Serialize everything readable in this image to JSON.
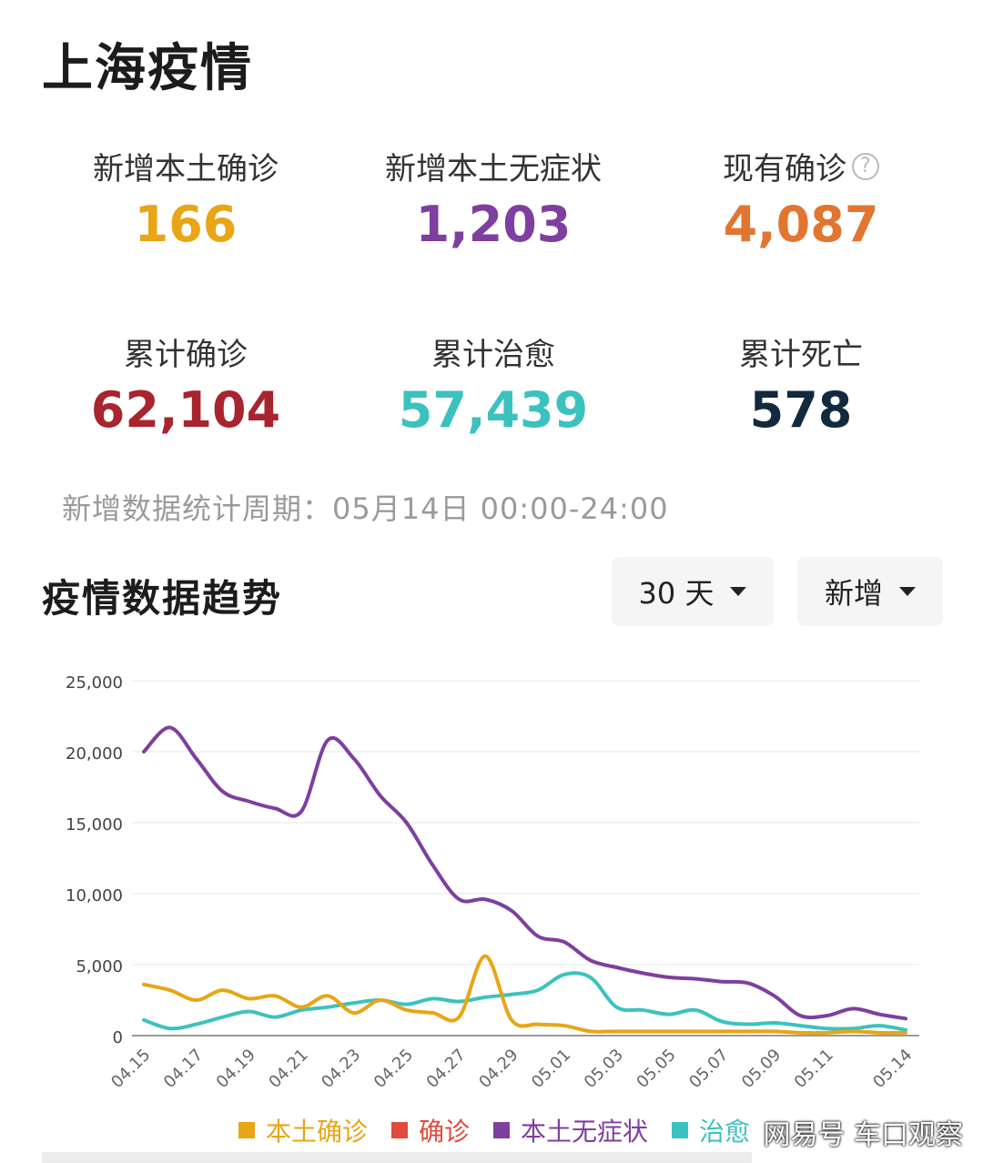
{
  "page_title": "上海疫情",
  "stats": [
    {
      "label": "新增本土确诊",
      "value": "166",
      "color": "#e8a515"
    },
    {
      "label": "新增本土无症状",
      "value": "1,203",
      "color": "#7e3fa0"
    },
    {
      "label": "现有确诊",
      "value": "4,087",
      "color": "#e2752f",
      "help": "?"
    },
    {
      "label": "累计确诊",
      "value": "62,104",
      "color": "#a8242e"
    },
    {
      "label": "累计治愈",
      "value": "57,439",
      "color": "#3cc2be"
    },
    {
      "label": "累计死亡",
      "value": "578",
      "color": "#13293d"
    }
  ],
  "period_text": "新增数据统计周期：05月14日 00:00-24:00",
  "trend_title": "疫情数据趋势",
  "range_dropdown": "30 天",
  "type_dropdown": "新增",
  "watermark": "网易号 车口观察",
  "chart_data": {
    "type": "line",
    "x": [
      "04.15",
      "04.16",
      "04.17",
      "04.18",
      "04.19",
      "04.20",
      "04.21",
      "04.22",
      "04.23",
      "04.24",
      "04.25",
      "04.26",
      "04.27",
      "04.28",
      "04.29",
      "04.30",
      "05.01",
      "05.02",
      "05.03",
      "05.04",
      "05.05",
      "05.06",
      "05.07",
      "05.08",
      "05.09",
      "05.10",
      "05.11",
      "05.12",
      "05.13",
      "05.14"
    ],
    "x_tick_labels": [
      "04.15",
      "04.17",
      "04.19",
      "04.21",
      "04.23",
      "04.25",
      "04.27",
      "04.29",
      "05.01",
      "05.03",
      "05.05",
      "05.07",
      "05.09",
      "05.11",
      "05.14"
    ],
    "ylim": [
      0,
      25000
    ],
    "y_ticks": [
      "0",
      "5,000",
      "10,000",
      "15,000",
      "20,000",
      "25,000"
    ],
    "y_tick_values": [
      0,
      5000,
      10000,
      15000,
      20000,
      25000
    ],
    "grid": true,
    "legend_position": "bottom",
    "series": [
      {
        "name": "本土确诊",
        "color": "#e8a515",
        "values": [
          3600,
          3200,
          2500,
          3200,
          2600,
          2800,
          2000,
          2800,
          1600,
          2500,
          1800,
          1600,
          1300,
          5600,
          1100,
          800,
          700,
          300,
          300,
          300,
          300,
          300,
          300,
          300,
          300,
          200,
          200,
          300,
          200,
          200
        ]
      },
      {
        "name": "确诊",
        "color": "#e24a3b",
        "values": [
          null,
          null,
          null,
          null,
          null,
          null,
          null,
          null,
          null,
          null,
          null,
          null,
          null,
          null,
          null,
          null,
          null,
          null,
          null,
          null,
          null,
          null,
          null,
          null,
          null,
          null,
          null,
          null,
          null,
          null
        ]
      },
      {
        "name": "本土无症状",
        "color": "#7e3fa0",
        "values": [
          20000,
          21700,
          19500,
          17200,
          16500,
          16000,
          15800,
          20800,
          19500,
          16900,
          15000,
          12000,
          9600,
          9600,
          8800,
          7000,
          6600,
          5300,
          4800,
          4400,
          4100,
          4000,
          3800,
          3700,
          2800,
          1400,
          1400,
          1900,
          1500,
          1200
        ]
      },
      {
        "name": "治愈",
        "color": "#3cc2be",
        "values": [
          1100,
          500,
          800,
          1300,
          1700,
          1300,
          1800,
          2000,
          2300,
          2500,
          2200,
          2600,
          2400,
          2700,
          2900,
          3200,
          4300,
          4100,
          2000,
          1800,
          1500,
          1800,
          1000,
          800,
          900,
          700,
          500,
          500,
          700,
          400
        ]
      }
    ]
  }
}
